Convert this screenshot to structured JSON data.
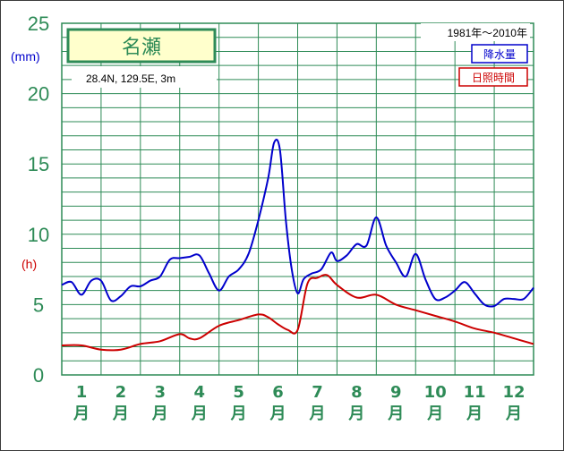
{
  "chart_data": {
    "type": "line",
    "title": "名瀬",
    "location": "28.4N,  129.5E,  3m",
    "period": "1981年～2010年",
    "y_ticks": [
      "0",
      "5",
      "10",
      "15",
      "20",
      "25"
    ],
    "ylim": [
      0,
      25
    ],
    "units": {
      "precip": "(mm)",
      "sun": "(h)"
    },
    "months": [
      {
        "num": "1",
        "suffix": "月"
      },
      {
        "num": "2",
        "suffix": "月"
      },
      {
        "num": "3",
        "suffix": "月"
      },
      {
        "num": "4",
        "suffix": "月"
      },
      {
        "num": "5",
        "suffix": "月"
      },
      {
        "num": "6",
        "suffix": "月"
      },
      {
        "num": "7",
        "suffix": "月"
      },
      {
        "num": "8",
        "suffix": "月"
      },
      {
        "num": "9",
        "suffix": "月"
      },
      {
        "num": "10",
        "suffix": "月"
      },
      {
        "num": "11",
        "suffix": "月"
      },
      {
        "num": "12",
        "suffix": "月"
      }
    ],
    "grid": true,
    "legend_position": "top-right",
    "series": [
      {
        "name": "降水量",
        "color": "#0000cc",
        "x": [
          0,
          0.25,
          0.5,
          0.75,
          1.0,
          1.25,
          1.5,
          1.75,
          2.0,
          2.25,
          2.5,
          2.75,
          3.0,
          3.25,
          3.5,
          3.75,
          4.0,
          4.25,
          4.5,
          4.75,
          5.0,
          5.25,
          5.4,
          5.55,
          5.7,
          5.85,
          6.0,
          6.15,
          6.35,
          6.6,
          6.85,
          7.0,
          7.25,
          7.5,
          7.75,
          8.0,
          8.25,
          8.5,
          8.75,
          9.0,
          9.25,
          9.5,
          9.75,
          10.0,
          10.25,
          10.5,
          10.75,
          11.0,
          11.25,
          11.5,
          11.75,
          12.0
        ],
        "values": [
          6.4,
          6.6,
          5.7,
          6.7,
          6.7,
          5.3,
          5.6,
          6.3,
          6.3,
          6.7,
          7.0,
          8.2,
          8.3,
          8.4,
          8.5,
          7.2,
          6.0,
          7.0,
          7.5,
          8.6,
          11.0,
          14.0,
          16.5,
          16.0,
          11.0,
          7.5,
          5.8,
          6.8,
          7.2,
          7.5,
          8.7,
          8.1,
          8.5,
          9.3,
          9.2,
          11.2,
          9.2,
          8.0,
          7.0,
          8.6,
          6.8,
          5.4,
          5.5,
          6.0,
          6.6,
          5.8,
          5.0,
          4.9,
          5.4,
          5.4,
          5.4,
          6.2
        ]
      },
      {
        "name": "日照時間",
        "color": "#cc0000",
        "x": [
          0,
          0.5,
          1.0,
          1.5,
          2.0,
          2.5,
          3.0,
          3.25,
          3.5,
          4.0,
          4.5,
          5.0,
          5.25,
          5.5,
          5.75,
          6.0,
          6.25,
          6.5,
          6.75,
          7.0,
          7.5,
          8.0,
          8.5,
          9.0,
          9.5,
          10.0,
          10.5,
          11.0,
          11.5,
          12.0
        ],
        "values": [
          2.1,
          2.1,
          1.8,
          1.8,
          2.2,
          2.4,
          2.9,
          2.6,
          2.6,
          3.5,
          3.9,
          4.3,
          4.1,
          3.6,
          3.2,
          3.2,
          6.5,
          6.9,
          7.1,
          6.4,
          5.5,
          5.7,
          5.0,
          4.6,
          4.2,
          3.8,
          3.3,
          3.0,
          2.6,
          2.2
        ]
      }
    ]
  }
}
